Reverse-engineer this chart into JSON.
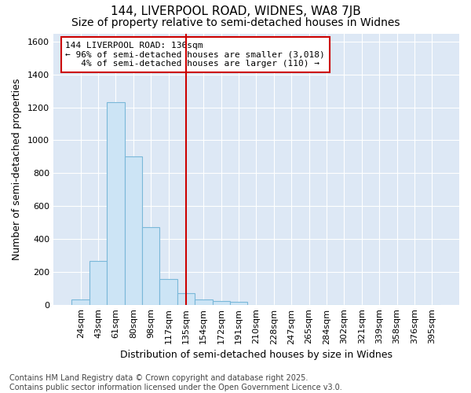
{
  "title": "144, LIVERPOOL ROAD, WIDNES, WA8 7JB",
  "subtitle": "Size of property relative to semi-detached houses in Widnes",
  "xlabel": "Distribution of semi-detached houses by size in Widnes",
  "ylabel": "Number of semi-detached properties",
  "categories": [
    "24sqm",
    "43sqm",
    "61sqm",
    "80sqm",
    "98sqm",
    "117sqm",
    "135sqm",
    "154sqm",
    "172sqm",
    "191sqm",
    "210sqm",
    "228sqm",
    "247sqm",
    "265sqm",
    "284sqm",
    "302sqm",
    "321sqm",
    "339sqm",
    "358sqm",
    "376sqm",
    "395sqm"
  ],
  "values": [
    30,
    265,
    1230,
    900,
    470,
    155,
    70,
    30,
    22,
    15,
    0,
    0,
    0,
    0,
    0,
    0,
    0,
    0,
    0,
    0,
    0
  ],
  "bar_color": "#cce4f5",
  "bar_edge_color": "#7ab8d9",
  "vline_x_index": 6,
  "vline_color": "#cc0000",
  "annotation_line1": "144 LIVERPOOL ROAD: 136sqm",
  "annotation_line2": "← 96% of semi-detached houses are smaller (3,018)",
  "annotation_line3": "   4% of semi-detached houses are larger (110) →",
  "annotation_box_color": "#ffffff",
  "annotation_box_edge": "#cc0000",
  "fig_bg_color": "#ffffff",
  "plot_bg_color": "#dde8f5",
  "grid_color": "#ffffff",
  "ylim": [
    0,
    1650
  ],
  "yticks": [
    0,
    200,
    400,
    600,
    800,
    1000,
    1200,
    1400,
    1600
  ],
  "title_fontsize": 11,
  "subtitle_fontsize": 10,
  "axis_label_fontsize": 9,
  "tick_fontsize": 8,
  "footer_fontsize": 7,
  "footer_line1": "Contains HM Land Registry data © Crown copyright and database right 2025.",
  "footer_line2": "Contains public sector information licensed under the Open Government Licence v3.0."
}
